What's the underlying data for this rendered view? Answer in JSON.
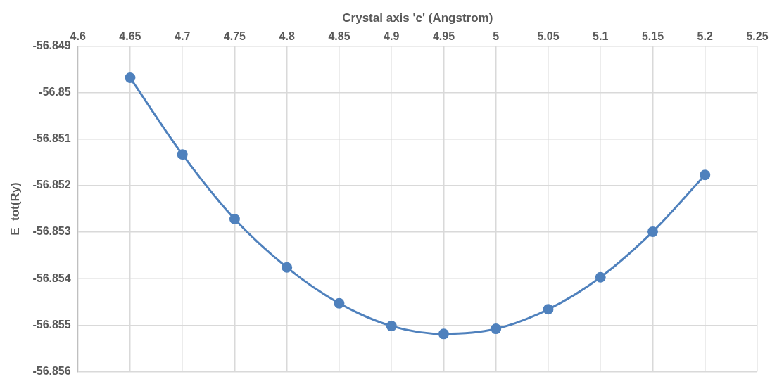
{
  "chart_data": {
    "type": "line",
    "xlabel": "Crystal axis 'c' (Angstrom)",
    "ylabel": "E_tot(Ry)",
    "x": [
      4.65,
      4.7,
      4.75,
      4.8,
      4.85,
      4.9,
      4.95,
      5.0,
      5.05,
      5.1,
      5.15,
      5.2
    ],
    "series": [
      {
        "color": "#4f81bd",
        "values": [
          -56.84968,
          -56.85133,
          -56.85272,
          -56.85376,
          -56.85453,
          -56.85502,
          -56.85519,
          -56.85508,
          -56.85466,
          -56.85397,
          -56.85299,
          -56.85177
        ]
      }
    ],
    "xlim": [
      4.6,
      5.25
    ],
    "xticks": [
      4.6,
      4.65,
      4.7,
      4.75,
      4.8,
      4.85,
      4.9,
      4.95,
      5,
      5.05,
      5.1,
      5.15,
      5.2,
      5.25
    ],
    "ylim": [
      -56.856,
      -56.849
    ],
    "yticks": [
      -56.856,
      -56.855,
      -56.854,
      -56.853,
      -56.852,
      -56.851,
      -56.85,
      -56.849
    ],
    "grid": true,
    "marker": "circle",
    "legend": false
  }
}
